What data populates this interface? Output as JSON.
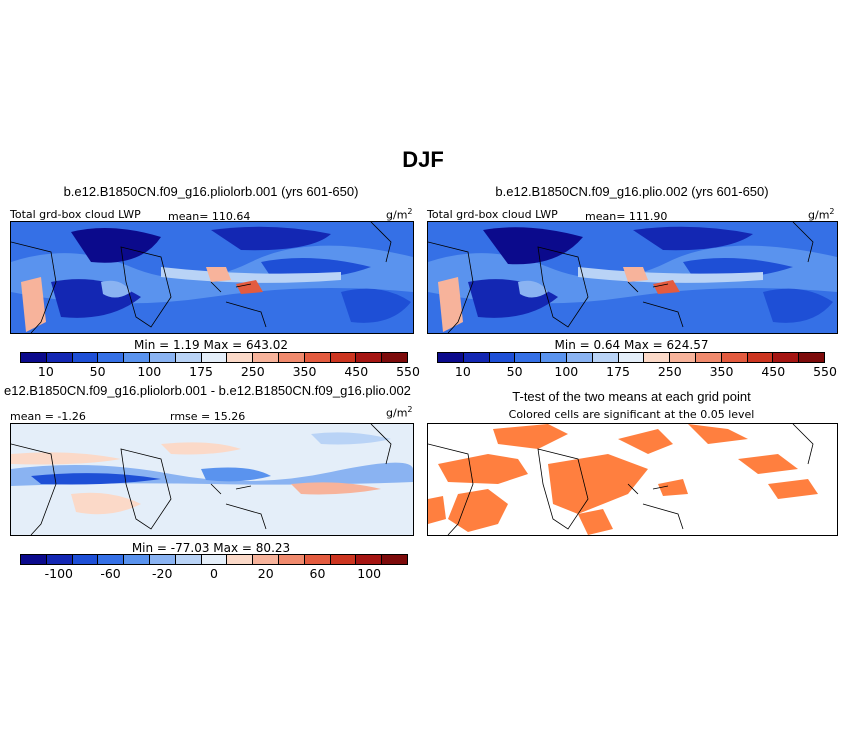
{
  "figure_title": "DJF",
  "colors": {
    "lwp_scale": [
      "#0b0a8c",
      "#1327b3",
      "#1e4fd6",
      "#3570e6",
      "#5a93ee",
      "#8ab3f2",
      "#b9d3f6",
      "#e4eef9",
      "#fbd9c8",
      "#f7b39b",
      "#f08a6d",
      "#e35b3f",
      "#cc3520",
      "#a51512",
      "#7d0b0b"
    ],
    "diff_scale": [
      "#0b0a8c",
      "#1327b3",
      "#1e4fd6",
      "#3570e6",
      "#5a93ee",
      "#8ab3f2",
      "#b9d3f6",
      "#e4eef9",
      "#fbd9c8",
      "#f7b39b",
      "#f08a6d",
      "#e35b3f",
      "#cc3520",
      "#a51512",
      "#7d0b0b"
    ],
    "signif": "#ff7f3f"
  },
  "panels": {
    "p1": {
      "title": "b.e12.B1850CN.f09_g16.pliolorb.001 (yrs 601-650)",
      "left_label": "Total grd-box cloud LWP",
      "mean_label": "mean= 110.64",
      "units": "g/m",
      "units_sup": "2",
      "minmax": "Min =    1.19  Max =  643.02",
      "ticks": [
        "10",
        "50",
        "100",
        "175",
        "250",
        "350",
        "450",
        "550"
      ]
    },
    "p2": {
      "title": "b.e12.B1850CN.f09_g16.plio.002 (yrs 601-650)",
      "left_label": "Total grd-box cloud LWP",
      "mean_label": "mean= 111.90",
      "units": "g/m",
      "units_sup": "2",
      "minmax": "Min =    0.64  Max =  624.57",
      "ticks": [
        "10",
        "50",
        "100",
        "175",
        "250",
        "350",
        "450",
        "550"
      ]
    },
    "p3": {
      "title": "e12.B1850CN.f09_g16.pliolorb.001 - b.e12.B1850CN.f09_g16.plio.002",
      "mean_label": "mean =  -1.26",
      "rmse_label": "rmse =  15.26",
      "units": "g/m",
      "units_sup": "2",
      "minmax": "Min = -77.03  Max =   80.23",
      "ticks": [
        "-100",
        "-60",
        "-20",
        "0",
        "20",
        "60",
        "100"
      ]
    },
    "p4": {
      "title": "T-test of the two means at each grid point",
      "subtitle": "Colored cells are significant at the 0.05 level"
    }
  },
  "chart_data": [
    {
      "type": "heatmap",
      "title": "b.e12.B1850CN.f09_g16.pliolorb.001 (yrs 601-650)",
      "variable": "Total grd-box cloud LWP",
      "units": "g/m2",
      "mean": 110.64,
      "min": 1.19,
      "max": 643.02,
      "contour_levels": [
        10,
        25,
        50,
        75,
        100,
        125,
        150,
        175,
        200,
        250,
        300,
        350,
        400,
        450,
        500,
        550
      ]
    },
    {
      "type": "heatmap",
      "title": "b.e12.B1850CN.f09_g16.plio.002 (yrs 601-650)",
      "variable": "Total grd-box cloud LWP",
      "units": "g/m2",
      "mean": 111.9,
      "min": 0.64,
      "max": 624.57,
      "contour_levels": [
        10,
        25,
        50,
        75,
        100,
        125,
        150,
        175,
        200,
        250,
        300,
        350,
        400,
        450,
        500,
        550
      ]
    },
    {
      "type": "heatmap",
      "title": "e12.B1850CN.f09_g16.pliolorb.001 - b.e12.B1850CN.f09_g16.plio.002",
      "units": "g/m2",
      "mean": -1.26,
      "rmse": 15.26,
      "min": -77.03,
      "max": 80.23,
      "contour_levels": [
        -100,
        -80,
        -60,
        -40,
        -20,
        -10,
        0,
        10,
        20,
        40,
        60,
        80,
        100
      ]
    },
    {
      "type": "heatmap",
      "title": "T-test of the two means at each grid point",
      "subtitle": "Colored cells are significant at the 0.05 level",
      "significance_level": 0.05
    }
  ]
}
